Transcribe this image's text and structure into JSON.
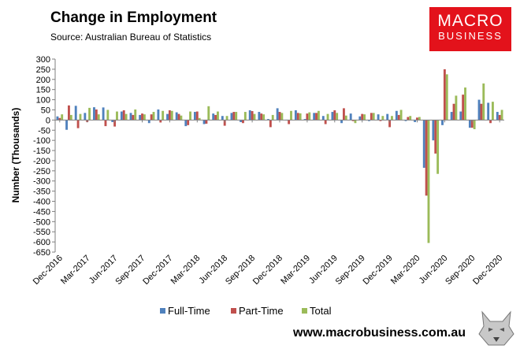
{
  "header": {
    "title": "Change in Employment",
    "source": "Source: Australian Bureau of Statistics"
  },
  "brand": {
    "logo_line1": "MACRO",
    "logo_line2": "BUSINESS",
    "website": "www.macrobusiness.com.au",
    "accent": "#e3121b"
  },
  "chart_data": {
    "type": "bar",
    "title": "Change in Employment",
    "xlabel": "",
    "ylabel": "Number (Thousands)",
    "ylim": [
      -650,
      300
    ],
    "yticks": [
      300,
      250,
      200,
      150,
      100,
      50,
      0,
      -50,
      -100,
      -150,
      -200,
      -250,
      -300,
      -350,
      -400,
      -450,
      -500,
      -550,
      -600,
      -650
    ],
    "grid": false,
    "legend_position": "bottom",
    "categories": [
      "Dec-2016",
      "Jan-2017",
      "Feb-2017",
      "Mar-2017",
      "Apr-2017",
      "May-2017",
      "Jun-2017",
      "Jul-2017",
      "Aug-2017",
      "Sep-2017",
      "Oct-2017",
      "Nov-2017",
      "Dec-2017",
      "Jan-2018",
      "Feb-2018",
      "Mar-2018",
      "Apr-2018",
      "May-2018",
      "Jun-2018",
      "Jul-2018",
      "Aug-2018",
      "Sep-2018",
      "Oct-2018",
      "Nov-2018",
      "Dec-2018",
      "Jan-2019",
      "Feb-2019",
      "Mar-2019",
      "Apr-2019",
      "May-2019",
      "Jun-2019",
      "Jul-2019",
      "Aug-2019",
      "Sep-2019",
      "Oct-2019",
      "Nov-2019",
      "Dec-2019",
      "Jan-2020",
      "Feb-2020",
      "Mar-2020",
      "Apr-2020",
      "May-2020",
      "Jun-2020",
      "Jul-2020",
      "Aug-2020",
      "Sep-2020",
      "Oct-2020",
      "Nov-2020",
      "Dec-2020"
    ],
    "tick_labels": [
      "Dec-2016",
      "Mar-2017",
      "Jun-2017",
      "Sep-2017",
      "Dec-2017",
      "Mar-2018",
      "Jun-2018",
      "Sep-2018",
      "Dec-2018",
      "Mar-2019",
      "Jun-2019",
      "Sep-2019",
      "Dec-2019",
      "Mar-2020",
      "Jun-2020",
      "Sep-2020",
      "Dec-2020"
    ],
    "series": [
      {
        "name": "Full-Time",
        "color": "#4f81bd",
        "values": [
          18,
          -48,
          70,
          35,
          63,
          62,
          -10,
          42,
          35,
          25,
          -15,
          52,
          30,
          38,
          -30,
          40,
          -20,
          32,
          20,
          35,
          -10,
          48,
          40,
          5,
          58,
          0,
          48,
          5,
          35,
          20,
          40,
          -15,
          32,
          18,
          -5,
          28,
          30,
          45,
          -5,
          -10,
          -235,
          -100,
          -25,
          40,
          42,
          -38,
          100,
          85,
          40
        ]
      },
      {
        "name": "Part-Time",
        "color": "#c0504d",
        "values": [
          10,
          72,
          -40,
          -10,
          52,
          -30,
          -32,
          48,
          25,
          32,
          28,
          -12,
          48,
          30,
          -25,
          42,
          -18,
          25,
          -28,
          40,
          -15,
          44,
          32,
          -35,
          40,
          -20,
          35,
          32,
          35,
          -20,
          48,
          58,
          -5,
          30,
          35,
          -5,
          -35,
          25,
          15,
          12,
          -372,
          -165,
          250,
          80,
          125,
          -38,
          80,
          -15,
          25
        ]
      },
      {
        "name": "Total",
        "color": "#9bbb59",
        "values": [
          28,
          25,
          30,
          60,
          28,
          50,
          42,
          30,
          52,
          28,
          40,
          45,
          45,
          22,
          42,
          10,
          68,
          42,
          20,
          40,
          40,
          30,
          28,
          25,
          35,
          45,
          33,
          38,
          45,
          30,
          35,
          22,
          -15,
          28,
          35,
          20,
          20,
          50,
          20,
          15,
          -605,
          -265,
          225,
          120,
          160,
          -45,
          180,
          90,
          50
        ]
      }
    ]
  }
}
